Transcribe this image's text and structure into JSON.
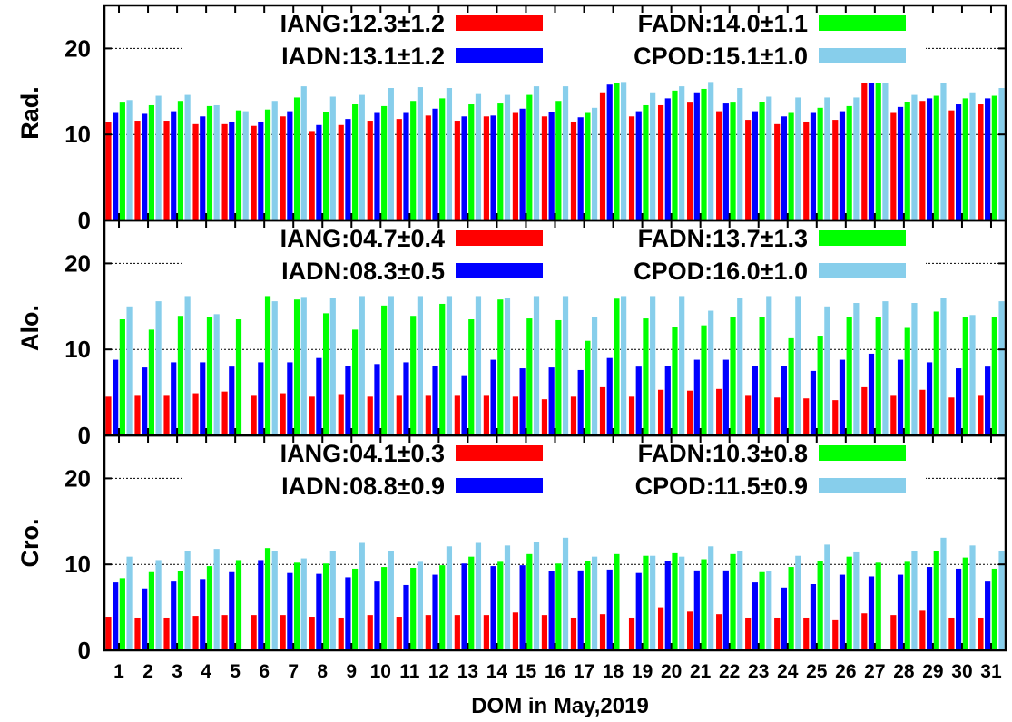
{
  "figure": {
    "xlabel": "DOM in May,2019"
  },
  "chart_data": [
    {
      "type": "bar",
      "ylabel": "Rad.",
      "ylim": [
        0,
        25
      ],
      "yticks": [
        0,
        10,
        20
      ],
      "grid": "dashed horizontal at 10 and 20",
      "legend_placement": "top, two columns",
      "categories": [
        "1",
        "2",
        "3",
        "4",
        "5",
        "6",
        "7",
        "8",
        "9",
        "10",
        "11",
        "12",
        "13",
        "14",
        "15",
        "16",
        "17",
        "18",
        "19",
        "20",
        "21",
        "22",
        "23",
        "24",
        "25",
        "26",
        "27",
        "28",
        "29",
        "30",
        "31"
      ],
      "series": [
        {
          "name": "IANG:12.3±1.2",
          "color": "#ff0000",
          "values": [
            11.4,
            11.6,
            11.6,
            11.2,
            11.2,
            11.0,
            12.1,
            10.4,
            11.1,
            11.6,
            11.8,
            12.2,
            11.6,
            12.1,
            12.5,
            12.1,
            11.5,
            14.9,
            12.1,
            13.4,
            13.7,
            12.7,
            11.7,
            11.2,
            11.5,
            11.7,
            16.0,
            12.5,
            13.9,
            12.8,
            13.5
          ]
        },
        {
          "name": "IADN:13.1±1.2",
          "color": "#0000ff",
          "values": [
            12.5,
            12.4,
            12.7,
            12.1,
            11.5,
            11.5,
            12.7,
            11.1,
            11.8,
            12.5,
            12.5,
            13.0,
            12.1,
            12.2,
            13.0,
            12.6,
            12.0,
            15.8,
            12.7,
            14.2,
            14.9,
            13.6,
            12.7,
            12.1,
            12.5,
            12.7,
            16.0,
            13.2,
            14.2,
            13.5,
            14.2
          ]
        },
        {
          "name": "FADN:14.0±1.1",
          "color": "#00ff00",
          "values": [
            13.7,
            13.4,
            13.9,
            13.3,
            12.8,
            12.9,
            14.3,
            12.6,
            13.5,
            13.3,
            13.9,
            14.2,
            13.5,
            13.6,
            14.6,
            13.9,
            12.5,
            16.0,
            13.4,
            15.1,
            15.3,
            13.7,
            13.8,
            12.5,
            13.1,
            13.3,
            16.0,
            13.8,
            14.5,
            14.2,
            14.5
          ]
        },
        {
          "name": "CPOD:15.1±1.0",
          "color": "#87ceeb",
          "values": [
            14.0,
            14.5,
            14.6,
            13.4,
            12.7,
            13.9,
            15.6,
            14.4,
            14.6,
            15.4,
            15.5,
            15.4,
            14.7,
            14.6,
            15.6,
            15.6,
            13.1,
            16.1,
            14.9,
            15.6,
            16.1,
            15.4,
            14.4,
            14.3,
            14.3,
            14.3,
            16.0,
            14.6,
            16.0,
            14.9,
            15.4
          ]
        }
      ]
    },
    {
      "type": "bar",
      "ylabel": "Alo.",
      "ylim": [
        0,
        25
      ],
      "yticks": [
        0,
        10,
        20
      ],
      "grid": "dashed horizontal at 10 and 20",
      "legend_placement": "top, two columns",
      "categories": [
        "1",
        "2",
        "3",
        "4",
        "5",
        "6",
        "7",
        "8",
        "9",
        "10",
        "11",
        "12",
        "13",
        "14",
        "15",
        "16",
        "17",
        "18",
        "19",
        "20",
        "21",
        "22",
        "23",
        "24",
        "25",
        "26",
        "27",
        "28",
        "29",
        "30",
        "31"
      ],
      "series": [
        {
          "name": "IANG:04.7±0.4",
          "color": "#ff0000",
          "values": [
            4.5,
            4.6,
            4.6,
            4.9,
            5.1,
            4.6,
            4.9,
            4.5,
            4.8,
            4.5,
            4.6,
            4.6,
            4.6,
            4.6,
            4.5,
            4.2,
            4.5,
            5.6,
            4.5,
            5.3,
            5.2,
            5.4,
            4.6,
            4.4,
            4.3,
            4.1,
            5.6,
            4.6,
            5.3,
            4.4,
            4.6
          ]
        },
        {
          "name": "IADN:08.3±0.5",
          "color": "#0000ff",
          "values": [
            8.8,
            7.9,
            8.5,
            8.5,
            8.0,
            8.5,
            8.5,
            9.0,
            8.1,
            8.3,
            8.5,
            8.1,
            7.0,
            8.8,
            7.8,
            7.9,
            7.6,
            9.0,
            8.0,
            8.1,
            8.8,
            8.8,
            8.1,
            8.1,
            7.5,
            8.8,
            9.5,
            8.8,
            8.5,
            7.8,
            8.0
          ]
        },
        {
          "name": "FADN:13.7±1.3",
          "color": "#00ff00",
          "values": [
            13.5,
            12.3,
            13.9,
            13.8,
            13.5,
            16.2,
            15.8,
            14.2,
            12.3,
            15.1,
            13.9,
            15.3,
            13.5,
            15.8,
            13.6,
            13.4,
            11.0,
            15.9,
            13.6,
            12.6,
            12.8,
            13.8,
            13.8,
            11.3,
            11.6,
            13.8,
            13.8,
            12.5,
            14.4,
            13.8,
            13.8
          ]
        },
        {
          "name": "CPOD:16.0±1.0",
          "color": "#87ceeb",
          "values": [
            15.0,
            15.6,
            16.2,
            14.1,
            null,
            15.6,
            16.1,
            16.0,
            16.2,
            16.2,
            16.2,
            16.2,
            16.2,
            16.0,
            16.2,
            16.2,
            13.8,
            16.2,
            16.2,
            16.2,
            14.5,
            16.0,
            16.2,
            16.2,
            15.0,
            15.4,
            15.6,
            15.4,
            16.0,
            14.0,
            15.6
          ]
        }
      ]
    },
    {
      "type": "bar",
      "ylabel": "Cro.",
      "ylim": [
        0,
        25
      ],
      "yticks": [
        0,
        10,
        20
      ],
      "grid": "dashed horizontal at 10 and 20",
      "legend_placement": "top, two columns",
      "categories": [
        "1",
        "2",
        "3",
        "4",
        "5",
        "6",
        "7",
        "8",
        "9",
        "10",
        "11",
        "12",
        "13",
        "14",
        "15",
        "16",
        "17",
        "18",
        "19",
        "20",
        "21",
        "22",
        "23",
        "24",
        "25",
        "26",
        "27",
        "28",
        "29",
        "30",
        "31"
      ],
      "series": [
        {
          "name": "IANG:04.1±0.3",
          "color": "#ff0000",
          "values": [
            3.9,
            3.8,
            3.8,
            4.0,
            4.1,
            4.1,
            4.1,
            3.9,
            3.8,
            4.1,
            3.9,
            4.1,
            4.1,
            4.1,
            4.4,
            4.1,
            3.8,
            4.2,
            3.8,
            5.0,
            4.5,
            4.2,
            3.8,
            3.8,
            3.8,
            3.6,
            4.3,
            4.1,
            4.6,
            3.8,
            3.8
          ]
        },
        {
          "name": "IADN:08.8±0.9",
          "color": "#0000ff",
          "values": [
            7.9,
            7.2,
            8.0,
            8.3,
            9.1,
            10.5,
            9.0,
            8.9,
            8.5,
            8.0,
            7.6,
            8.8,
            10.1,
            9.8,
            9.9,
            9.2,
            9.3,
            9.4,
            9.0,
            10.4,
            9.3,
            9.3,
            7.9,
            7.3,
            7.7,
            8.8,
            8.6,
            8.8,
            9.7,
            9.5,
            8.0
          ]
        },
        {
          "name": "FADN:10.3±0.8",
          "color": "#00ff00",
          "values": [
            8.4,
            9.1,
            9.2,
            9.8,
            10.5,
            11.9,
            10.2,
            10.1,
            9.5,
            9.7,
            9.6,
            9.9,
            10.9,
            10.3,
            11.2,
            10.1,
            10.4,
            11.2,
            11.0,
            11.3,
            10.6,
            11.2,
            9.1,
            9.7,
            10.4,
            10.9,
            10.2,
            10.3,
            11.6,
            10.8,
            9.5
          ]
        },
        {
          "name": "CPOD:11.5±0.9",
          "color": "#87ceeb",
          "values": [
            10.9,
            10.5,
            11.6,
            11.8,
            null,
            11.5,
            10.7,
            11.6,
            12.5,
            11.5,
            10.3,
            12.1,
            12.5,
            12.2,
            12.6,
            13.1,
            10.9,
            null,
            11.0,
            10.9,
            12.1,
            11.6,
            9.2,
            11.0,
            12.3,
            11.4,
            null,
            11.5,
            13.1,
            12.2,
            11.6
          ]
        }
      ]
    }
  ]
}
